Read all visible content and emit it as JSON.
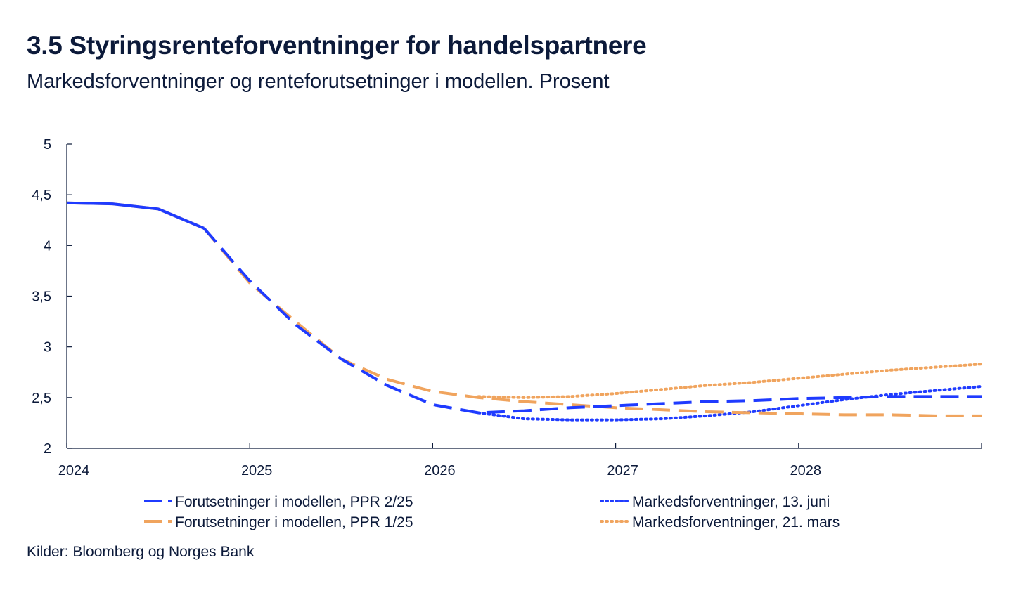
{
  "title": "3.5 Styringsrenteforventninger for handelspartnere",
  "subtitle": "Markedsforventninger og renteforutsetninger i modellen. Prosent",
  "source": "Kilder: Bloomberg og Norges Bank",
  "colors": {
    "blue": "#1f3bff",
    "orange": "#f0a45e",
    "axis": "#0c1a3a",
    "text": "#0c1a3a"
  },
  "chart_data": {
    "type": "line",
    "title": "3.5 Styringsrenteforventninger for handelspartnere",
    "xlabel": "",
    "ylabel": "Prosent",
    "xlim": [
      2024.0,
      2029.0
    ],
    "ylim": [
      2,
      5
    ],
    "yticks": [
      2,
      2.5,
      3,
      3.5,
      4,
      4.5,
      5
    ],
    "ytick_labels": [
      "2",
      "2,5",
      "3",
      "3,5",
      "4",
      "4,5",
      "5"
    ],
    "xticks": [
      2024,
      2025,
      2026,
      2027,
      2028
    ],
    "xtick_labels": [
      "2024",
      "2025",
      "2026",
      "2027",
      "2028"
    ],
    "grid": false,
    "legend_position": "bottom",
    "series": [
      {
        "name": "Forutsetninger i modellen, PPR 2/25",
        "color": "#1f3bff",
        "style": "dash-history",
        "x": [
          2024.0,
          2024.25,
          2024.5,
          2024.75,
          2025.0,
          2025.25,
          2025.5,
          2025.75,
          2026.0,
          2026.25,
          2026.5,
          2026.75,
          2027.0,
          2027.25,
          2027.5,
          2027.75,
          2028.0,
          2028.25,
          2028.5,
          2028.75,
          2029.0
        ],
        "y": [
          4.42,
          4.41,
          4.36,
          4.17,
          3.65,
          3.22,
          2.88,
          2.62,
          2.43,
          2.35,
          2.37,
          2.4,
          2.42,
          2.44,
          2.46,
          2.47,
          2.49,
          2.5,
          2.51,
          2.51,
          2.51
        ]
      },
      {
        "name": "Forutsetninger i modellen, PPR 1/25",
        "color": "#f0a45e",
        "style": "dash-history",
        "x": [
          2024.0,
          2024.25,
          2024.5,
          2024.75,
          2025.0,
          2025.25,
          2025.5,
          2025.75,
          2026.0,
          2026.25,
          2026.5,
          2026.75,
          2027.0,
          2027.25,
          2027.5,
          2027.75,
          2028.0,
          2028.25,
          2028.5,
          2028.75,
          2029.0
        ],
        "y": [
          4.42,
          4.41,
          4.36,
          4.17,
          3.63,
          3.25,
          2.88,
          2.68,
          2.56,
          2.5,
          2.46,
          2.43,
          2.4,
          2.38,
          2.36,
          2.35,
          2.34,
          2.33,
          2.33,
          2.32,
          2.32
        ]
      },
      {
        "name": "Markedsforventninger, 13. juni",
        "color": "#1f3bff",
        "style": "dotted",
        "x": [
          2026.25,
          2026.5,
          2026.75,
          2027.0,
          2027.25,
          2027.5,
          2027.75,
          2028.0,
          2028.25,
          2028.5,
          2028.75,
          2029.0
        ],
        "y": [
          2.35,
          2.29,
          2.28,
          2.28,
          2.29,
          2.32,
          2.36,
          2.42,
          2.48,
          2.53,
          2.57,
          2.61
        ]
      },
      {
        "name": "Markedsforventninger, 21. mars",
        "color": "#f0a45e",
        "style": "dotted",
        "x": [
          2026.25,
          2026.5,
          2026.75,
          2027.0,
          2027.25,
          2027.5,
          2027.75,
          2028.0,
          2028.25,
          2028.5,
          2028.75,
          2029.0
        ],
        "y": [
          2.51,
          2.5,
          2.51,
          2.54,
          2.58,
          2.62,
          2.65,
          2.69,
          2.73,
          2.77,
          2.8,
          2.83
        ]
      }
    ]
  }
}
